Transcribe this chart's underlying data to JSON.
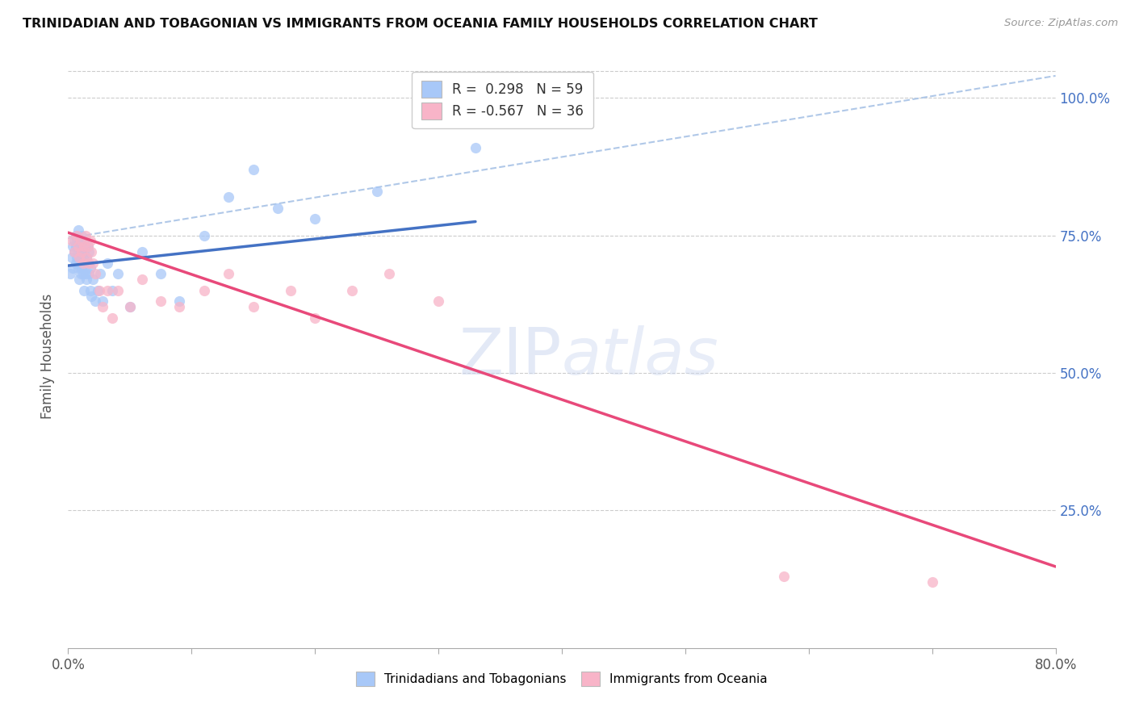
{
  "title": "TRINIDADIAN AND TOBAGONIAN VS IMMIGRANTS FROM OCEANIA FAMILY HOUSEHOLDS CORRELATION CHART",
  "source": "Source: ZipAtlas.com",
  "ylabel": "Family Households",
  "ytick_vals": [
    0.25,
    0.5,
    0.75,
    1.0
  ],
  "ytick_labels": [
    "25.0%",
    "50.0%",
    "75.0%",
    "100.0%"
  ],
  "xmin": 0.0,
  "xmax": 0.8,
  "ymin": 0.0,
  "ymax": 1.06,
  "blue_color": "#a8c8f8",
  "pink_color": "#f8b4c8",
  "blue_line_color": "#4472c4",
  "pink_line_color": "#e8497a",
  "dashed_line_color": "#b0c8e8",
  "blue_scatter_x": [
    0.002,
    0.003,
    0.004,
    0.004,
    0.005,
    0.005,
    0.006,
    0.006,
    0.006,
    0.007,
    0.007,
    0.008,
    0.008,
    0.008,
    0.009,
    0.009,
    0.009,
    0.01,
    0.01,
    0.01,
    0.011,
    0.011,
    0.011,
    0.012,
    0.012,
    0.012,
    0.013,
    0.013,
    0.013,
    0.014,
    0.014,
    0.015,
    0.015,
    0.016,
    0.016,
    0.017,
    0.017,
    0.018,
    0.018,
    0.019,
    0.02,
    0.022,
    0.024,
    0.026,
    0.028,
    0.032,
    0.036,
    0.04,
    0.05,
    0.06,
    0.075,
    0.09,
    0.11,
    0.13,
    0.15,
    0.17,
    0.2,
    0.25,
    0.33
  ],
  "blue_scatter_y": [
    0.68,
    0.71,
    0.73,
    0.69,
    0.72,
    0.74,
    0.7,
    0.73,
    0.75,
    0.71,
    0.74,
    0.69,
    0.72,
    0.76,
    0.7,
    0.73,
    0.67,
    0.71,
    0.74,
    0.68,
    0.72,
    0.75,
    0.69,
    0.71,
    0.74,
    0.68,
    0.72,
    0.65,
    0.7,
    0.73,
    0.68,
    0.71,
    0.67,
    0.7,
    0.73,
    0.68,
    0.72,
    0.65,
    0.69,
    0.64,
    0.67,
    0.63,
    0.65,
    0.68,
    0.63,
    0.7,
    0.65,
    0.68,
    0.62,
    0.72,
    0.68,
    0.63,
    0.75,
    0.82,
    0.87,
    0.8,
    0.78,
    0.83,
    0.91
  ],
  "pink_scatter_x": [
    0.003,
    0.005,
    0.007,
    0.008,
    0.009,
    0.01,
    0.011,
    0.012,
    0.013,
    0.014,
    0.015,
    0.016,
    0.017,
    0.018,
    0.019,
    0.02,
    0.022,
    0.025,
    0.028,
    0.032,
    0.036,
    0.04,
    0.05,
    0.06,
    0.075,
    0.09,
    0.11,
    0.13,
    0.15,
    0.18,
    0.2,
    0.23,
    0.26,
    0.3,
    0.58,
    0.7
  ],
  "pink_scatter_y": [
    0.74,
    0.72,
    0.75,
    0.73,
    0.71,
    0.74,
    0.72,
    0.7,
    0.73,
    0.75,
    0.71,
    0.73,
    0.7,
    0.74,
    0.72,
    0.7,
    0.68,
    0.65,
    0.62,
    0.65,
    0.6,
    0.65,
    0.62,
    0.67,
    0.63,
    0.62,
    0.65,
    0.68,
    0.62,
    0.65,
    0.6,
    0.65,
    0.68,
    0.63,
    0.13,
    0.12
  ],
  "blue_trendline_x": [
    0.0,
    0.33
  ],
  "blue_trendline_y": [
    0.695,
    0.775
  ],
  "pink_trendline_x": [
    0.0,
    0.8
  ],
  "pink_trendline_y": [
    0.755,
    0.148
  ],
  "dashed_trendline_x": [
    0.0,
    0.8
  ],
  "dashed_trendline_y": [
    0.745,
    1.04
  ],
  "legend1_label": "R =  0.298   N = 59",
  "legend2_label": "R = -0.567   N = 36",
  "bottom_legend1": "Trinidadians and Tobagonians",
  "bottom_legend2": "Immigrants from Oceania",
  "watermark_part1": "ZIP",
  "watermark_part2": "atlas"
}
